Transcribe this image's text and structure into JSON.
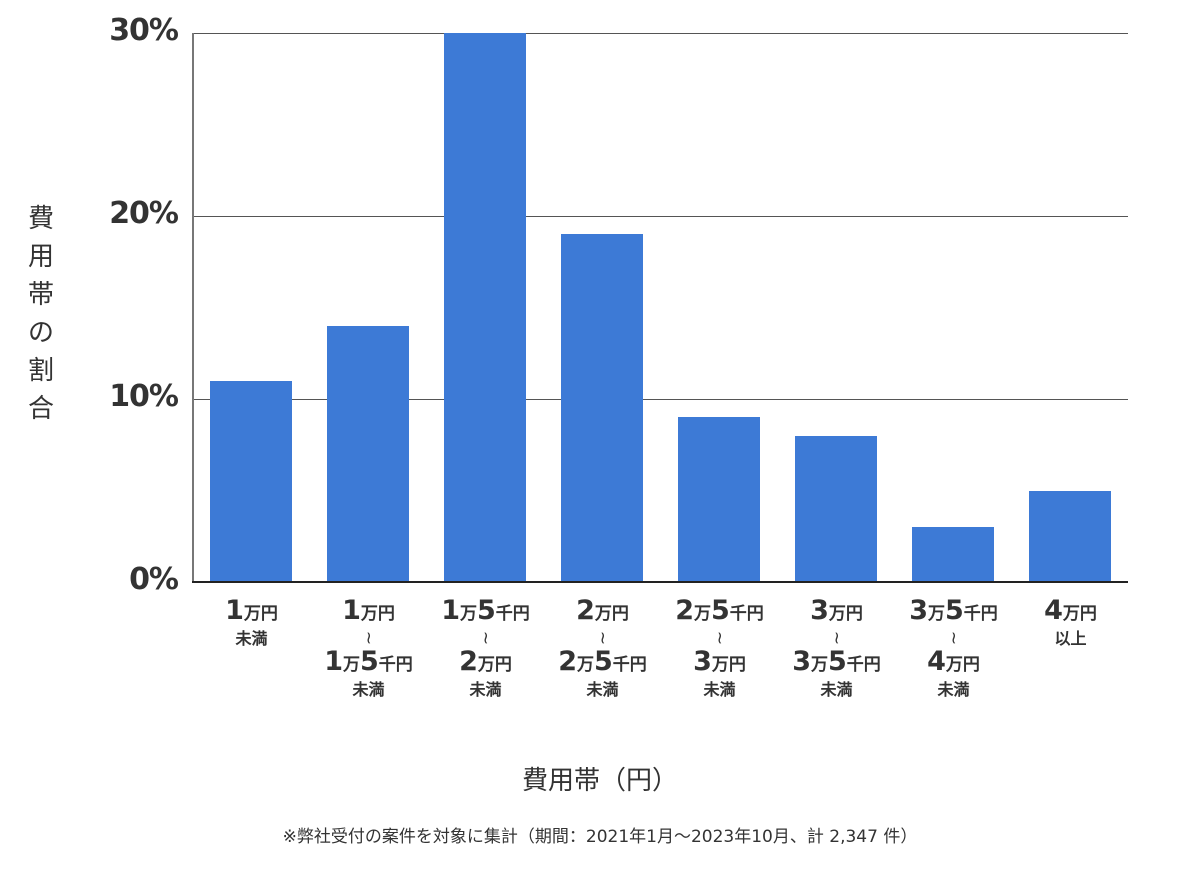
{
  "chart_data": {
    "type": "bar",
    "title": "",
    "xlabel": "費用帯（円）",
    "ylabel": "費用帯の割合",
    "ylim": [
      0,
      30
    ],
    "yticks": [
      "0%",
      "10%",
      "20%",
      "30%"
    ],
    "grid": true,
    "legend": null,
    "color": "#3d7ad6",
    "categories": [
      "1万円未満",
      "1万円〜1万5千円未満",
      "1万5千円〜2万円未満",
      "2万円〜2万5千円未満",
      "2万5千円〜3万円未満",
      "3万円〜3万5千円未満",
      "3万5千円〜4万円未満",
      "4万円以上"
    ],
    "values": [
      11,
      14,
      30,
      19,
      9,
      8,
      3,
      5
    ],
    "unit": "%"
  },
  "axis": {
    "ylabel_chars": [
      "費",
      "用",
      "帯",
      "の",
      "割",
      "合"
    ],
    "yticks": [
      {
        "label": "30%",
        "value": 30
      },
      {
        "label": "20%",
        "value": 20
      },
      {
        "label": "10%",
        "value": 10
      },
      {
        "label": "0%",
        "value": 0
      }
    ],
    "xlabel": "費用帯（円）"
  },
  "categories": [
    {
      "from": [
        {
          "n": "1",
          "u": "万円"
        }
      ],
      "tilde": false,
      "to": [],
      "suffix": "未満"
    },
    {
      "from": [
        {
          "n": "1",
          "u": "万円"
        }
      ],
      "tilde": true,
      "to": [
        {
          "n": "1",
          "u": "万"
        },
        {
          "n": "5",
          "u": "千円"
        }
      ],
      "suffix": "未満"
    },
    {
      "from": [
        {
          "n": "1",
          "u": "万"
        },
        {
          "n": "5",
          "u": "千円"
        }
      ],
      "tilde": true,
      "to": [
        {
          "n": "2",
          "u": "万円"
        }
      ],
      "suffix": "未満"
    },
    {
      "from": [
        {
          "n": "2",
          "u": "万円"
        }
      ],
      "tilde": true,
      "to": [
        {
          "n": "2",
          "u": "万"
        },
        {
          "n": "5",
          "u": "千円"
        }
      ],
      "suffix": "未満"
    },
    {
      "from": [
        {
          "n": "2",
          "u": "万"
        },
        {
          "n": "5",
          "u": "千円"
        }
      ],
      "tilde": true,
      "to": [
        {
          "n": "3",
          "u": "万円"
        }
      ],
      "suffix": "未満"
    },
    {
      "from": [
        {
          "n": "3",
          "u": "万円"
        }
      ],
      "tilde": true,
      "to": [
        {
          "n": "3",
          "u": "万"
        },
        {
          "n": "5",
          "u": "千円"
        }
      ],
      "suffix": "未満"
    },
    {
      "from": [
        {
          "n": "3",
          "u": "万"
        },
        {
          "n": "5",
          "u": "千円"
        }
      ],
      "tilde": true,
      "to": [
        {
          "n": "4",
          "u": "万円"
        }
      ],
      "suffix": "未満"
    },
    {
      "from": [
        {
          "n": "4",
          "u": "万円"
        }
      ],
      "tilde": false,
      "to": [],
      "suffix": "以上"
    }
  ],
  "tilde_glyph": "〜",
  "note": "※弊社受付の案件を対象に集計（期間：2021年1月〜2023年10月、計 2,347 件）"
}
